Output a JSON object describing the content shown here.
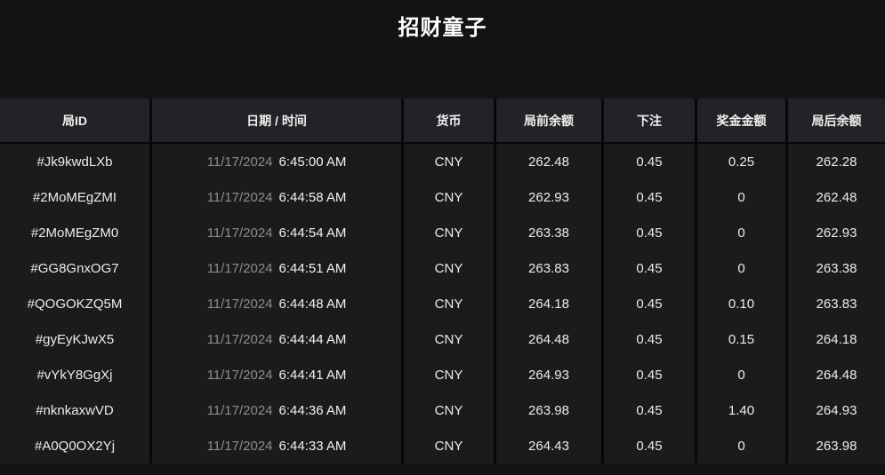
{
  "page": {
    "title": "招财童子"
  },
  "table": {
    "headers": {
      "id": "局ID",
      "datetime": "日期 / 时间",
      "currency": "货币",
      "balance_before": "局前余额",
      "bet": "下注",
      "prize": "奖金金额",
      "balance_after": "局后余额"
    },
    "rows": [
      {
        "id": "#Jk9kwdLXb",
        "date": "11/17/2024",
        "time": "6:45:00 AM",
        "currency": "CNY",
        "balance_before": "262.48",
        "bet": "0.45",
        "prize": "0.25",
        "balance_after": "262.28"
      },
      {
        "id": "#2MoMEgZMI",
        "date": "11/17/2024",
        "time": "6:44:58 AM",
        "currency": "CNY",
        "balance_before": "262.93",
        "bet": "0.45",
        "prize": "0",
        "balance_after": "262.48"
      },
      {
        "id": "#2MoMEgZM0",
        "date": "11/17/2024",
        "time": "6:44:54 AM",
        "currency": "CNY",
        "balance_before": "263.38",
        "bet": "0.45",
        "prize": "0",
        "balance_after": "262.93"
      },
      {
        "id": "#GG8GnxOG7",
        "date": "11/17/2024",
        "time": "6:44:51 AM",
        "currency": "CNY",
        "balance_before": "263.83",
        "bet": "0.45",
        "prize": "0",
        "balance_after": "263.38"
      },
      {
        "id": "#QOGOKZQ5M",
        "date": "11/17/2024",
        "time": "6:44:48 AM",
        "currency": "CNY",
        "balance_before": "264.18",
        "bet": "0.45",
        "prize": "0.10",
        "balance_after": "263.83"
      },
      {
        "id": "#gyEyKJwX5",
        "date": "11/17/2024",
        "time": "6:44:44 AM",
        "currency": "CNY",
        "balance_before": "264.48",
        "bet": "0.45",
        "prize": "0.15",
        "balance_after": "264.18"
      },
      {
        "id": "#vYkY8GgXj",
        "date": "11/17/2024",
        "time": "6:44:41 AM",
        "currency": "CNY",
        "balance_before": "264.93",
        "bet": "0.45",
        "prize": "0",
        "balance_after": "264.48"
      },
      {
        "id": "#nknkaxwVD",
        "date": "11/17/2024",
        "time": "6:44:36 AM",
        "currency": "CNY",
        "balance_before": "263.98",
        "bet": "0.45",
        "prize": "1.40",
        "balance_after": "264.93"
      },
      {
        "id": "#A0Q0OX2Yj",
        "date": "11/17/2024",
        "time": "6:44:33 AM",
        "currency": "CNY",
        "balance_before": "264.43",
        "bet": "0.45",
        "prize": "0",
        "balance_after": "263.98"
      }
    ]
  }
}
